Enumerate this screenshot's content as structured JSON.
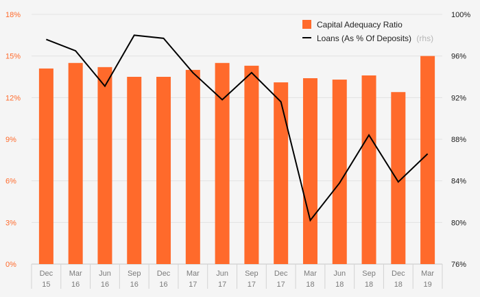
{
  "chart_data": {
    "type": "bar",
    "categories": [
      [
        "Dec",
        "15"
      ],
      [
        "Mar",
        "16"
      ],
      [
        "Jun",
        "16"
      ],
      [
        "Sep",
        "16"
      ],
      [
        "Dec",
        "16"
      ],
      [
        "Mar",
        "17"
      ],
      [
        "Jun",
        "17"
      ],
      [
        "Sep",
        "17"
      ],
      [
        "Dec",
        "17"
      ],
      [
        "Mar",
        "18"
      ],
      [
        "Jun",
        "18"
      ],
      [
        "Sep",
        "18"
      ],
      [
        "Dec",
        "18"
      ],
      [
        "Mar",
        "19"
      ]
    ],
    "series": [
      {
        "name": "Capital Adequacy Ratio",
        "type": "bar",
        "axis": "left",
        "color": "#ff6a2b",
        "values": [
          14.1,
          14.5,
          14.2,
          13.5,
          13.5,
          14.0,
          14.5,
          14.3,
          13.1,
          13.4,
          13.3,
          13.6,
          12.4,
          15.0
        ]
      },
      {
        "name": "Loans (As % Of Deposits)",
        "suffix": "(rhs)",
        "type": "line",
        "axis": "right",
        "color": "#000000",
        "values": [
          97.6,
          96.5,
          93.1,
          98.0,
          97.7,
          94.4,
          91.8,
          94.4,
          91.6,
          80.2,
          83.8,
          88.4,
          83.9,
          86.6
        ]
      }
    ],
    "y_left": {
      "min": 0,
      "max": 18,
      "ticks": [
        0,
        3,
        6,
        9,
        12,
        15,
        18
      ],
      "tick_labels": [
        "0%",
        "3%",
        "6%",
        "9%",
        "12%",
        "15%",
        "18%"
      ],
      "color": "#ff6a2b"
    },
    "y_right": {
      "min": 76,
      "max": 100,
      "ticks": [
        76,
        80,
        84,
        88,
        92,
        96,
        100
      ],
      "tick_labels": [
        "76%",
        "80%",
        "84%",
        "88%",
        "92%",
        "96%",
        "100%"
      ],
      "color": "#1a1a1a"
    },
    "grid": true,
    "legend_position": "top-right",
    "background": "#f5f5f5"
  }
}
